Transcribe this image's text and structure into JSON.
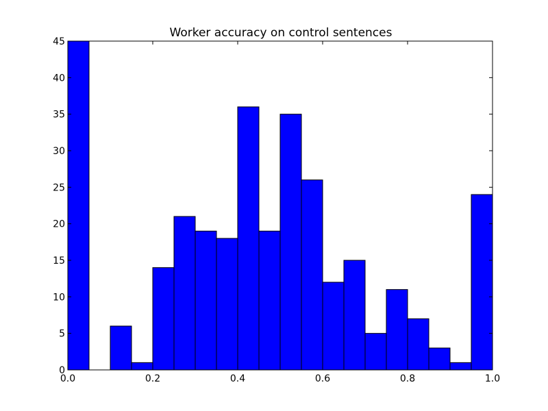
{
  "chart_data": {
    "type": "bar",
    "title": "Worker accuracy on control sentences",
    "xlabel": "",
    "ylabel": "",
    "bin_width": 0.05,
    "bin_starts": [
      0.0,
      0.05,
      0.1,
      0.15,
      0.2,
      0.25,
      0.3,
      0.35,
      0.4,
      0.45,
      0.5,
      0.55,
      0.6,
      0.65,
      0.7,
      0.75,
      0.8,
      0.85,
      0.9,
      0.95
    ],
    "values": [
      45,
      0,
      6,
      1,
      14,
      21,
      19,
      18,
      36,
      19,
      35,
      26,
      12,
      15,
      5,
      11,
      7,
      3,
      1,
      24
    ],
    "xlim": [
      0.0,
      1.0
    ],
    "ylim": [
      0,
      45
    ],
    "xticks": [
      0.0,
      0.2,
      0.4,
      0.6,
      0.8,
      1.0
    ],
    "xtick_labels": [
      "0.0",
      "0.2",
      "0.4",
      "0.6",
      "0.8",
      "1.0"
    ],
    "yticks": [
      0,
      5,
      10,
      15,
      20,
      25,
      30,
      35,
      40,
      45
    ],
    "ytick_labels": [
      "0",
      "5",
      "10",
      "15",
      "20",
      "25",
      "30",
      "35",
      "40",
      "45"
    ],
    "bar_color": "#0000ff",
    "edge_color": "#000000",
    "grid": false,
    "legend": "none"
  }
}
